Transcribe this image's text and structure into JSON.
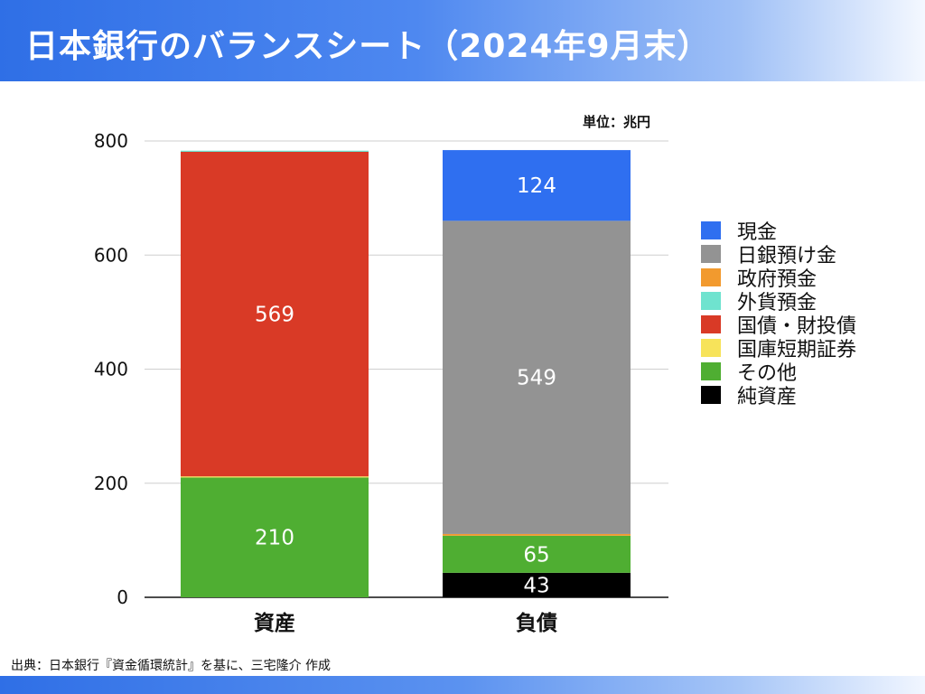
{
  "header": {
    "title": "日本銀行のバランスシート（2024年9月末）"
  },
  "source": "出典：日本銀行『資金循環統計』を基に、三宅隆介 作成",
  "chart_data": {
    "type": "bar",
    "stacked": true,
    "unit_label": "単位：兆円",
    "categories": [
      "資産",
      "負債"
    ],
    "ylim": [
      0,
      800
    ],
    "yticks": [
      "0",
      "200",
      "400",
      "600",
      "800"
    ],
    "grid": true,
    "legend_position": "right",
    "legend": [
      {
        "name": "現金",
        "color": "#2f6ff0"
      },
      {
        "name": "日銀預け金",
        "color": "#939393"
      },
      {
        "name": "政府預金",
        "color": "#f29a2e"
      },
      {
        "name": "外貨預金",
        "color": "#6fe3cf"
      },
      {
        "name": "国債・財投債",
        "color": "#d93a26"
      },
      {
        "name": "国庫短期証券",
        "color": "#f7e35a"
      },
      {
        "name": "その他",
        "color": "#4fae32"
      },
      {
        "name": "純資産",
        "color": "#000000"
      }
    ],
    "stacks": [
      {
        "category": "資産",
        "segments": [
          {
            "series": "その他",
            "value": 210,
            "label": "210",
            "color": "#4fae32"
          },
          {
            "series": "国庫短期証券",
            "value": 2,
            "label": "",
            "color": "#f7e35a"
          },
          {
            "series": "国債・財投債",
            "value": 569,
            "label": "569",
            "color": "#d93a26"
          },
          {
            "series": "外貨預金",
            "value": 2,
            "label": "",
            "color": "#6fe3cf"
          }
        ]
      },
      {
        "category": "負債",
        "segments": [
          {
            "series": "純資産",
            "value": 43,
            "label": "43",
            "color": "#000000"
          },
          {
            "series": "その他",
            "value": 65,
            "label": "65",
            "color": "#4fae32"
          },
          {
            "series": "政府預金",
            "value": 3,
            "label": "",
            "color": "#f29a2e"
          },
          {
            "series": "日銀預け金",
            "value": 549,
            "label": "549",
            "color": "#939393"
          },
          {
            "series": "現金",
            "value": 124,
            "label": "124",
            "color": "#2f6ff0"
          }
        ]
      }
    ]
  }
}
